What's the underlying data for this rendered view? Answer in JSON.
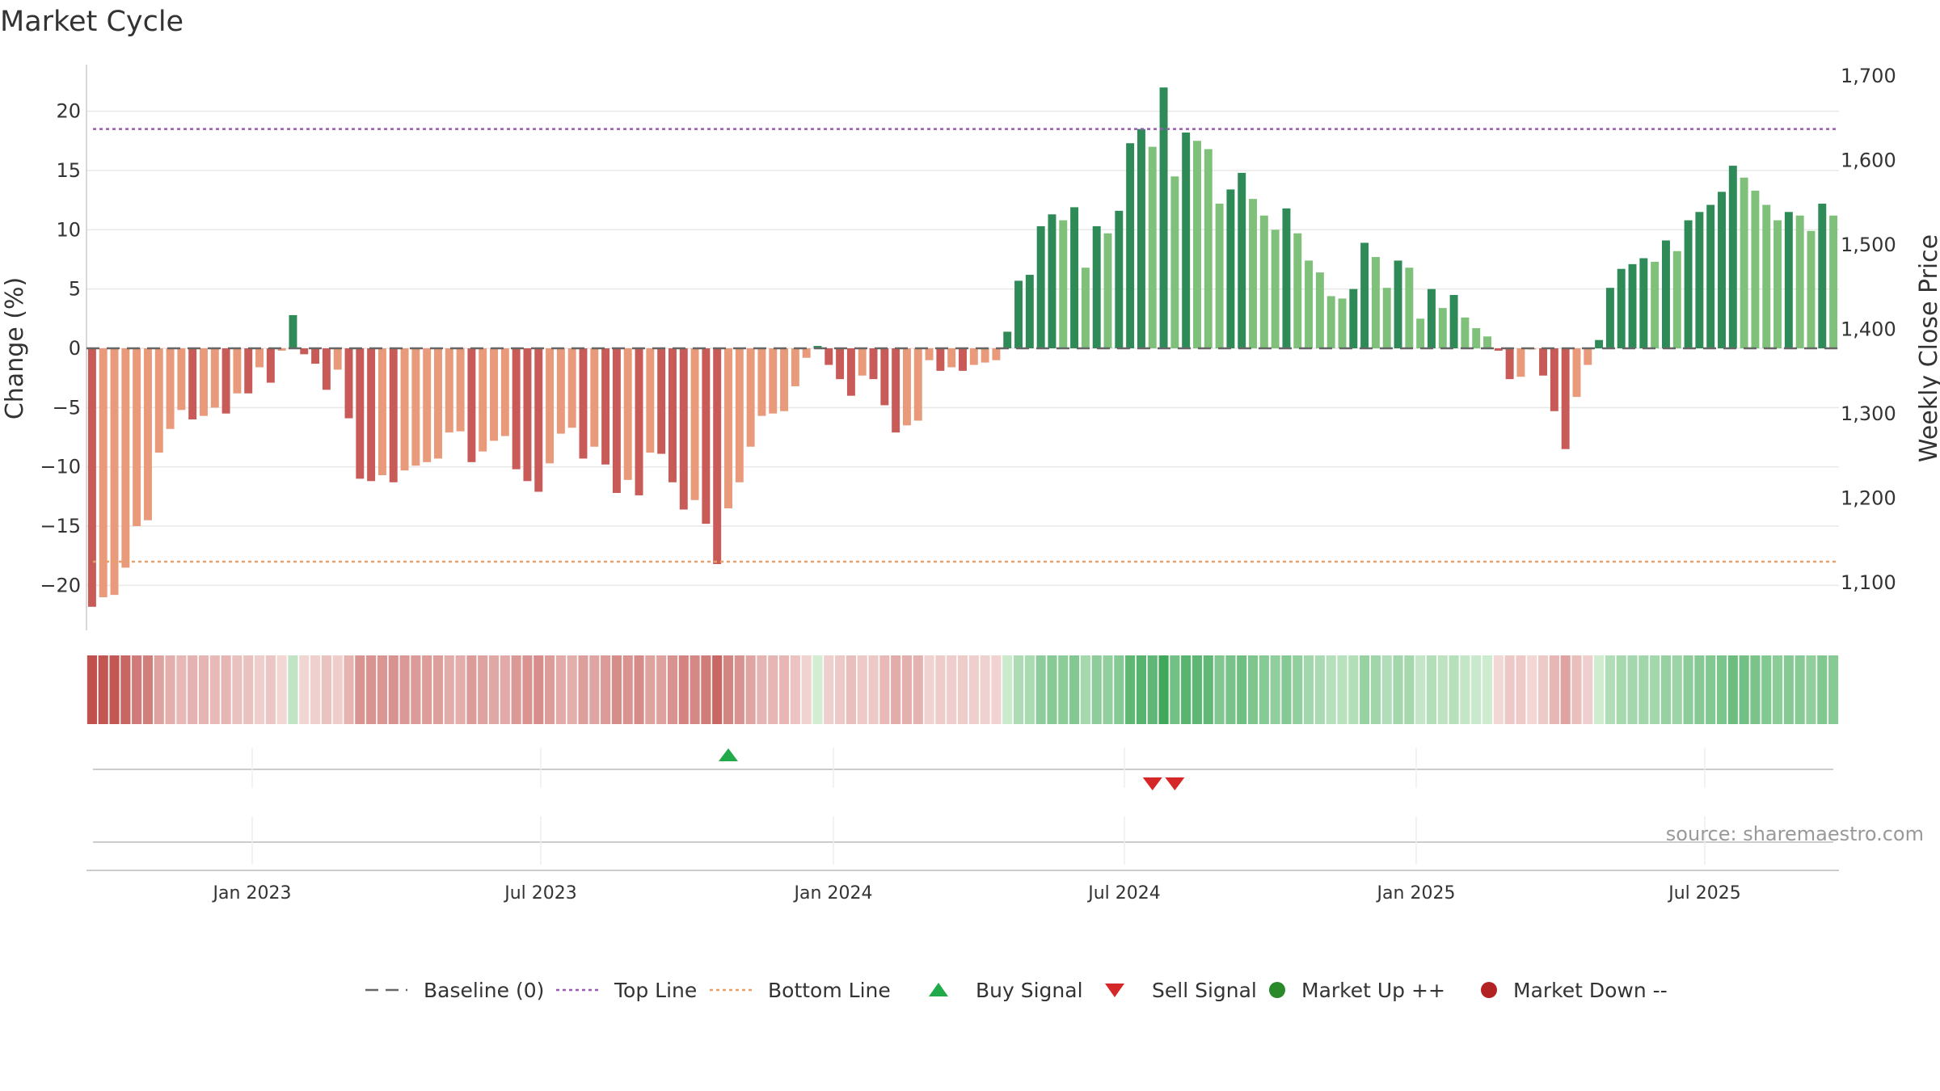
{
  "title": "Market Cycle",
  "source": "source: sharemaestro.com",
  "colors": {
    "red_dark": "#c85a57",
    "red_light": "#e89a7a",
    "green_dark": "#2e8b57",
    "green_light": "#7fc07a",
    "top_line": "#9b59b6",
    "bottom_line": "#e8a06a",
    "buy": "#22a94a",
    "sell": "#d62728",
    "market_up": "#2a8a2a",
    "market_down": "#b22222",
    "baseline": "#666666"
  },
  "legend": [
    {
      "label": "Baseline (0)",
      "icon": "dash-line"
    },
    {
      "label": "Top Line",
      "icon": "dotted-line-purple"
    },
    {
      "label": "Bottom Line",
      "icon": "dotted-line-orange"
    },
    {
      "label": "Buy Signal",
      "icon": "triangle-up-green"
    },
    {
      "label": "Sell Signal",
      "icon": "triangle-down-red"
    },
    {
      "label": "Market Up ++",
      "icon": "circle-green"
    },
    {
      "label": "Market Down --",
      "icon": "circle-red"
    }
  ],
  "chart_data": {
    "type": "bar",
    "title": "Market Cycle",
    "ylabel": "Change (%)",
    "y2label": "Weekly Close Price",
    "ylim": [
      -24,
      24
    ],
    "yticks": [
      20,
      15,
      10,
      5,
      0,
      -5,
      -10,
      -15,
      -20
    ],
    "y2ticks": [
      "1,700",
      "1,600",
      "1,500",
      "1,400",
      "1,300",
      "1,200",
      "1,100"
    ],
    "xticks": [
      "Jan 2023",
      "Jul 2023",
      "Jan 2024",
      "Jul 2024",
      "Jan 2025",
      "Jul 2025"
    ],
    "top_line": 18.5,
    "bottom_line": -18,
    "buy_signals": [
      57
    ],
    "sell_signals": [
      95,
      97
    ],
    "series": [
      {
        "values": [
          -21.8,
          -21,
          -20.8,
          -18.5,
          -15,
          -14.5,
          -8.8,
          -6.8,
          -5.2,
          -6,
          -5.7,
          -5,
          -5.5,
          -3.8,
          -3.8,
          -1.6,
          -2.9,
          -0.2,
          2.8,
          -0.5,
          -1.3,
          -3.5,
          -1.8,
          -5.9,
          -11,
          -11.2,
          -10.7,
          -11.3,
          -10.3,
          -9.9,
          -9.6,
          -9.3,
          -7.1,
          -7,
          -9.6,
          -8.7,
          -7.8,
          -7.4,
          -10.2,
          -11.2,
          -12.1,
          -9.7,
          -7.2,
          -6.7,
          -9.3,
          -8.3,
          -9.8,
          -12.2,
          -11.1,
          -12.4,
          -8.8,
          -8.9,
          -11.3,
          -13.6,
          -12.8,
          -14.8,
          -18.2,
          -13.5,
          -11.3,
          -8.3,
          -5.7,
          -5.5,
          -5.3,
          -3.2,
          -0.8,
          0.2,
          -1.4,
          -2.6,
          -4,
          -2.3,
          -2.6,
          -4.8,
          -7.1,
          -6.5,
          -6.1,
          -1,
          -1.9,
          -1.6,
          -1.9,
          -1.4,
          -1.2,
          -1,
          1.4,
          5.7,
          6.2,
          10.3,
          11.3,
          10.8,
          11.9,
          6.8,
          10.3,
          9.7,
          11.6,
          17.3,
          18.5,
          17,
          22,
          14.5,
          18.2,
          17.5,
          16.8,
          12.2,
          13.4,
          14.8,
          12.6,
          11.2,
          10,
          11.8,
          9.7,
          7.4,
          6.4,
          4.4,
          4.2,
          5,
          8.9,
          7.7,
          5.1,
          7.4,
          6.8,
          2.5,
          5,
          3.4,
          4.5,
          2.6,
          1.7,
          1,
          -0.2,
          -2.6,
          -2.4,
          -0.1,
          -2.3,
          -5.3,
          -8.5,
          -4.1,
          -1.4,
          0.7,
          5.1,
          6.7,
          7.1,
          7.6,
          7.3,
          9.1,
          8.2,
          10.8,
          11.5,
          12.1,
          13.2,
          15.4,
          14.4,
          13.3,
          12.1,
          10.8,
          11.5,
          11.2,
          9.9,
          12.2,
          11.2
        ]
      }
    ]
  }
}
